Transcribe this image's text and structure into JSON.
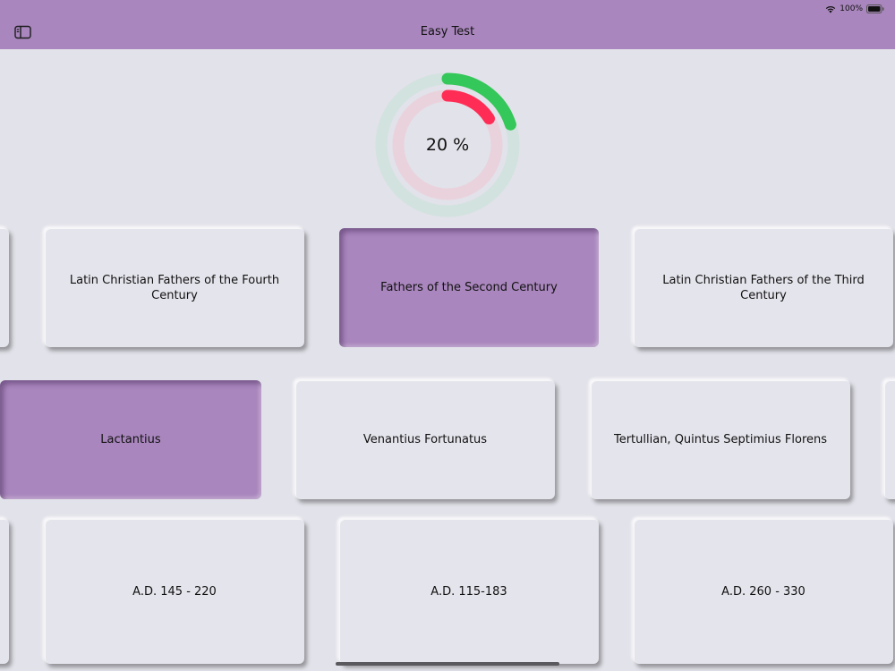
{
  "status": {
    "battery": "100%"
  },
  "nav": {
    "title": "Easy Test"
  },
  "progress": {
    "label": "20 %",
    "correct_fraction": 0.2,
    "wrong_fraction": 0.16
  },
  "colors": {
    "accent": "#a986bd",
    "correct": "#34c759",
    "wrong": "#ff2d55"
  },
  "row1": [
    "",
    "Latin Christian Fathers of the Fourth Century",
    "Fathers of the Second Century",
    "Latin Christian Fathers of the Third Century"
  ],
  "row2": [
    "Lactantius",
    "Venantius Fortunatus",
    "Tertullian, Quintus Septimius Florens",
    ""
  ],
  "row3": [
    "",
    "A.D. 145 - 220",
    "A.D. 115-183",
    "A.D. 260 - 330"
  ],
  "selected": [
    "Fathers of the Second Century",
    "Lactantius"
  ]
}
